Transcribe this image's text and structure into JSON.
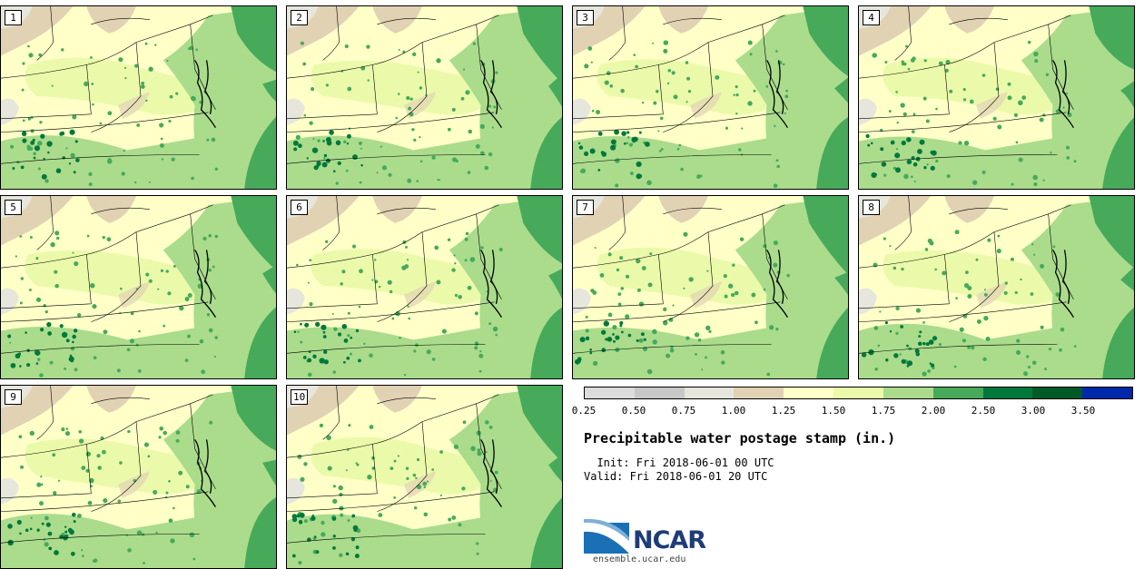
{
  "panels": [
    {
      "label": "1"
    },
    {
      "label": "2"
    },
    {
      "label": "3"
    },
    {
      "label": "4"
    },
    {
      "label": "5"
    },
    {
      "label": "6"
    },
    {
      "label": "7"
    },
    {
      "label": "8"
    },
    {
      "label": "9"
    },
    {
      "label": "10"
    }
  ],
  "colorbar": {
    "colors": [
      "#dcdcdc",
      "#c8c8c8",
      "#e6e6dc",
      "#e1d2b4",
      "#ffffc8",
      "#ebfaaa",
      "#aadc8c",
      "#46aa5a",
      "#00783c",
      "#005a28",
      "#0028aa"
    ],
    "ticks": [
      "0.25",
      "0.50",
      "0.75",
      "1.00",
      "1.25",
      "1.50",
      "1.75",
      "2.00",
      "2.50",
      "3.00",
      "3.50"
    ]
  },
  "legend": {
    "title": "Precipitable water postage stamp (in.)",
    "init": "  Init: Fri 2018-06-01 00 UTC",
    "valid": "Valid: Fri 2018-06-01 20 UTC"
  },
  "logo": {
    "name": "NCAR",
    "url": "ensemble.ucar.edu"
  }
}
